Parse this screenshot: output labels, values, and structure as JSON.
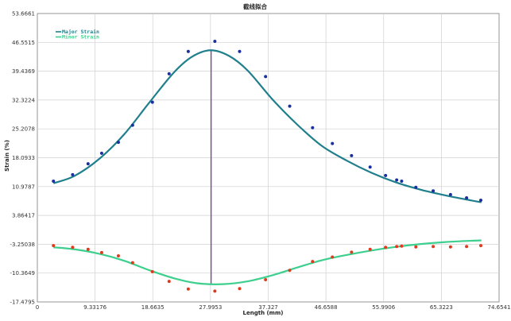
{
  "chart_data": {
    "type": "line",
    "title": "截线拟合",
    "xlabel": "Length (mm)",
    "ylabel": "Strain (%)",
    "xlim": [
      0,
      74.6541
    ],
    "ylim": [
      -17.4795,
      53.6661
    ],
    "x_ticks": [
      "0",
      "9.33176",
      "18.6635",
      "27.9953",
      "37.327",
      "46.6588",
      "55.9906",
      "65.3223",
      "74.6541"
    ],
    "y_ticks": [
      "53.6661",
      "46.5515",
      "39.4369",
      "32.3224",
      "25.2078",
      "18.0933",
      "10.9787",
      "3.86417",
      "-3.25038",
      "-10.3649",
      "-17.4795"
    ],
    "x_tick_values": [
      0,
      9.33176,
      18.6635,
      27.9953,
      37.327,
      46.6588,
      55.9906,
      65.3223,
      74.6541
    ],
    "y_tick_values": [
      53.6661,
      46.5515,
      39.4369,
      32.3224,
      25.2078,
      18.0933,
      10.9787,
      3.86417,
      -3.25038,
      -10.3649,
      -17.4795
    ],
    "grid": true,
    "legend_position": "top-left",
    "marker_x": 28.1,
    "marker_color": "#7a3fa0",
    "series": [
      {
        "name": "Major Strain",
        "line_color": "#1f7f8c",
        "point_color": "#1a2fa0",
        "points": [
          [
            2.6,
            12.3
          ],
          [
            5.7,
            13.9
          ],
          [
            8.2,
            16.6
          ],
          [
            10.4,
            19.2
          ],
          [
            13.1,
            21.9
          ],
          [
            15.4,
            26.1
          ],
          [
            18.6,
            31.8
          ],
          [
            21.3,
            38.8
          ],
          [
            24.4,
            44.3
          ],
          [
            28.7,
            46.8
          ],
          [
            32.7,
            44.3
          ],
          [
            36.9,
            38.1
          ],
          [
            40.8,
            30.8
          ],
          [
            44.5,
            25.5
          ],
          [
            47.7,
            21.6
          ],
          [
            50.8,
            18.6
          ],
          [
            53.8,
            15.8
          ],
          [
            56.3,
            13.7
          ],
          [
            58.1,
            12.6
          ],
          [
            58.9,
            12.3
          ],
          [
            61.2,
            10.8
          ],
          [
            64.0,
            9.9
          ],
          [
            66.8,
            9.0
          ],
          [
            69.4,
            8.2
          ],
          [
            71.7,
            7.6
          ]
        ],
        "fit": [
          [
            2.6,
            11.8
          ],
          [
            6.0,
            13.6
          ],
          [
            10.0,
            17.8
          ],
          [
            14.0,
            23.8
          ],
          [
            18.0,
            31.5
          ],
          [
            22.0,
            39.0
          ],
          [
            25.0,
            43.0
          ],
          [
            28.0,
            44.6
          ],
          [
            31.0,
            43.2
          ],
          [
            34.0,
            39.6
          ],
          [
            38.0,
            32.5
          ],
          [
            42.0,
            26.3
          ],
          [
            46.0,
            21.0
          ],
          [
            50.0,
            17.4
          ],
          [
            54.0,
            14.4
          ],
          [
            58.0,
            12.0
          ],
          [
            62.0,
            10.2
          ],
          [
            66.0,
            8.8
          ],
          [
            70.0,
            7.6
          ],
          [
            71.8,
            7.1
          ]
        ]
      },
      {
        "name": "Minor Strain",
        "line_color": "#3ccf8e",
        "point_color": "#e03a1e",
        "points": [
          [
            2.6,
            -3.6
          ],
          [
            5.7,
            -4.0
          ],
          [
            8.2,
            -4.5
          ],
          [
            10.4,
            -5.3
          ],
          [
            13.1,
            -6.1
          ],
          [
            15.4,
            -7.8
          ],
          [
            18.6,
            -10.0
          ],
          [
            21.3,
            -12.4
          ],
          [
            24.4,
            -14.3
          ],
          [
            28.7,
            -14.8
          ],
          [
            32.7,
            -14.2
          ],
          [
            36.9,
            -12.0
          ],
          [
            40.8,
            -9.7
          ],
          [
            44.5,
            -7.5
          ],
          [
            47.7,
            -6.4
          ],
          [
            50.8,
            -5.2
          ],
          [
            53.8,
            -4.5
          ],
          [
            56.3,
            -4.0
          ],
          [
            58.1,
            -3.8
          ],
          [
            58.9,
            -3.7
          ],
          [
            61.2,
            -3.9
          ],
          [
            64.0,
            -3.8
          ],
          [
            66.8,
            -3.9
          ],
          [
            69.4,
            -3.8
          ],
          [
            71.7,
            -3.6
          ]
        ],
        "fit": [
          [
            2.6,
            -4.0
          ],
          [
            6.0,
            -4.5
          ],
          [
            10.0,
            -5.6
          ],
          [
            14.0,
            -7.3
          ],
          [
            18.0,
            -9.6
          ],
          [
            22.0,
            -11.6
          ],
          [
            26.0,
            -12.9
          ],
          [
            30.0,
            -13.1
          ],
          [
            34.0,
            -12.4
          ],
          [
            38.0,
            -10.9
          ],
          [
            42.0,
            -9.0
          ],
          [
            46.0,
            -7.2
          ],
          [
            50.0,
            -5.9
          ],
          [
            54.0,
            -4.8
          ],
          [
            58.0,
            -3.9
          ],
          [
            62.0,
            -3.2
          ],
          [
            66.0,
            -2.7
          ],
          [
            70.0,
            -2.4
          ],
          [
            71.8,
            -2.3
          ]
        ]
      }
    ]
  }
}
